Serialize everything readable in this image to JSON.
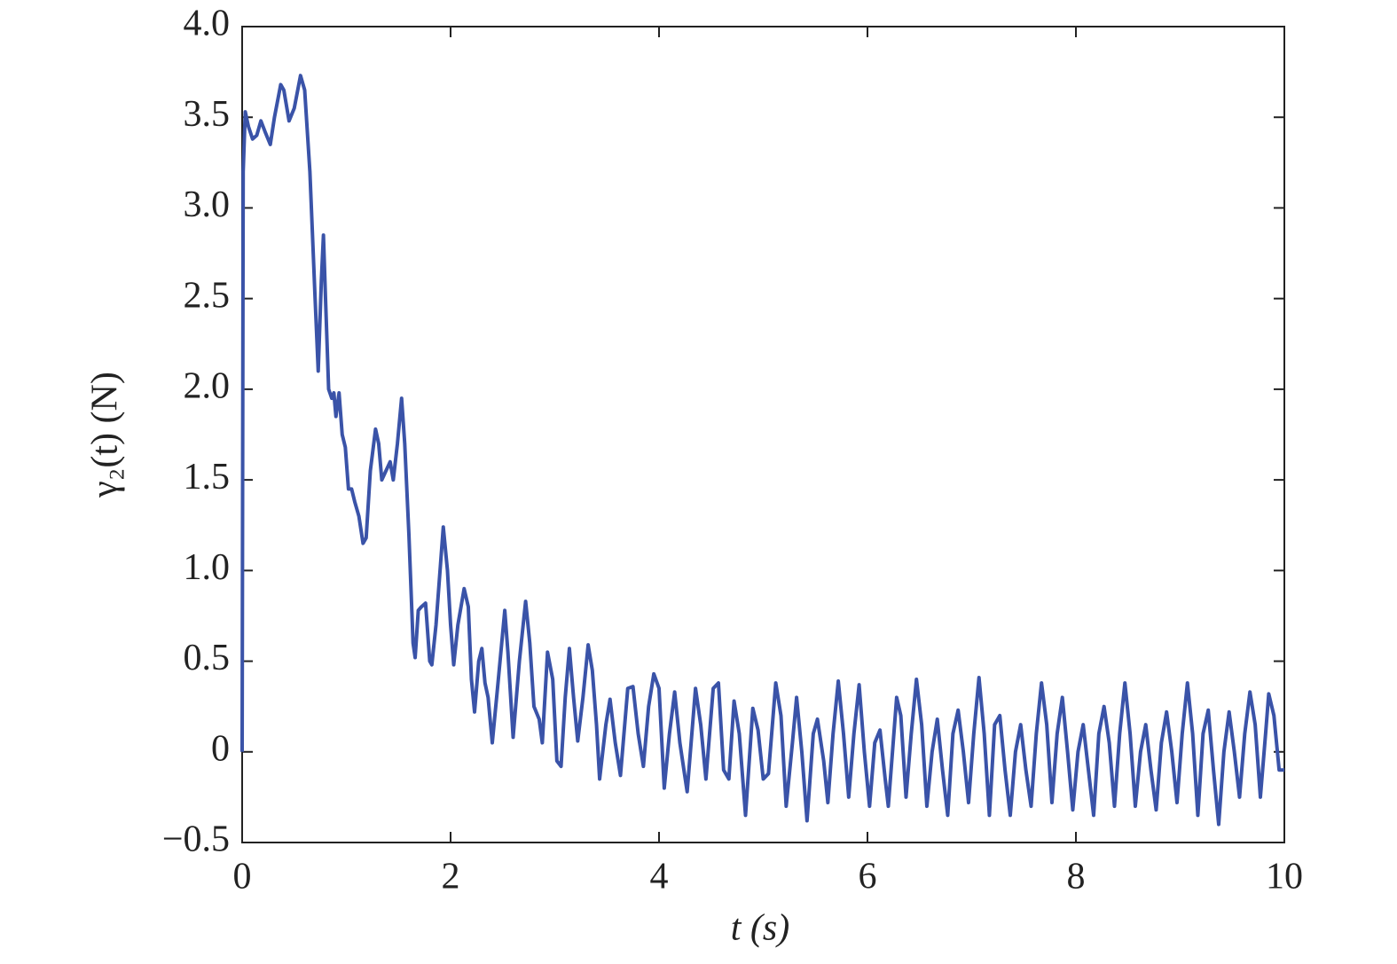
{
  "chart_data": {
    "type": "line",
    "xlabel": "t (s)",
    "ylabel": "γ₂(t) (N)",
    "xlim": [
      0,
      10
    ],
    "xticks": [
      0,
      2,
      4,
      6,
      8,
      10
    ],
    "ylim": [
      -0.5,
      4.0
    ],
    "yticks": [
      {
        "value": -0.5,
        "label": "−0.5"
      },
      0,
      0.5,
      {
        "value": 1.0,
        "label": "1.0"
      },
      1.5,
      {
        "value": 2.0,
        "label": "2.0"
      },
      2.5,
      {
        "value": 3.0,
        "label": "3.0"
      },
      3.5,
      {
        "value": 4.0,
        "label": "4.0"
      }
    ],
    "grid": false,
    "series": [
      {
        "color": "#3a53a8",
        "x": [
          0,
          0.01,
          0.03,
          0.06,
          0.1,
          0.14,
          0.18,
          0.22,
          0.27,
          0.31,
          0.37,
          0.4,
          0.45,
          0.5,
          0.56,
          0.6,
          0.65,
          0.7,
          0.73,
          0.76,
          0.78,
          0.8,
          0.83,
          0.86,
          0.88,
          0.9,
          0.93,
          0.96,
          0.99,
          1.02,
          1.05,
          1.08,
          1.12,
          1.16,
          1.19,
          1.23,
          1.28,
          1.31,
          1.34,
          1.38,
          1.42,
          1.45,
          1.49,
          1.53,
          1.56,
          1.6,
          1.64,
          1.66,
          1.69,
          1.72,
          1.76,
          1.8,
          1.82,
          1.86,
          1.93,
          1.97,
          2.0,
          2.03,
          2.07,
          2.13,
          2.17,
          2.2,
          2.23,
          2.27,
          2.3,
          2.33,
          2.36,
          2.4,
          2.45,
          2.52,
          2.55,
          2.6,
          2.66,
          2.72,
          2.76,
          2.8,
          2.85,
          2.88,
          2.93,
          2.98,
          3.02,
          3.06,
          3.1,
          3.14,
          3.18,
          3.22,
          3.27,
          3.32,
          3.36,
          3.4,
          3.43,
          3.49,
          3.53,
          3.58,
          3.63,
          3.7,
          3.75,
          3.8,
          3.85,
          3.9,
          3.95,
          4.0,
          4.05,
          4.1,
          4.15,
          4.2,
          4.27,
          4.35,
          4.4,
          4.45,
          4.52,
          4.57,
          4.62,
          4.67,
          4.72,
          4.77,
          4.83,
          4.9,
          4.95,
          5.0,
          5.05,
          5.12,
          5.17,
          5.22,
          5.28,
          5.32,
          5.37,
          5.42,
          5.48,
          5.52,
          5.58,
          5.62,
          5.67,
          5.72,
          5.77,
          5.82,
          5.87,
          5.92,
          5.97,
          6.02,
          6.07,
          6.12,
          6.17,
          6.2,
          6.28,
          6.32,
          6.37,
          6.42,
          6.47,
          6.52,
          6.57,
          6.62,
          6.67,
          6.72,
          6.77,
          6.82,
          6.87,
          6.92,
          6.97,
          7.02,
          7.07,
          7.12,
          7.17,
          7.22,
          7.27,
          7.32,
          7.37,
          7.42,
          7.47,
          7.52,
          7.57,
          7.62,
          7.67,
          7.72,
          7.77,
          7.82,
          7.87,
          7.92,
          7.97,
          8.02,
          8.07,
          8.12,
          8.17,
          8.22,
          8.27,
          8.32,
          8.37,
          8.42,
          8.47,
          8.52,
          8.57,
          8.62,
          8.67,
          8.72,
          8.77,
          8.82,
          8.87,
          8.92,
          8.97,
          9.02,
          9.07,
          9.12,
          9.17,
          9.22,
          9.27,
          9.32,
          9.37,
          9.42,
          9.47,
          9.52,
          9.57,
          9.62,
          9.67,
          9.72,
          9.77,
          9.82,
          9.85,
          9.9,
          9.95,
          10
        ],
        "values": [
          0,
          3.2,
          3.53,
          3.45,
          3.38,
          3.4,
          3.48,
          3.42,
          3.35,
          3.5,
          3.68,
          3.65,
          3.48,
          3.55,
          3.73,
          3.65,
          3.2,
          2.5,
          2.1,
          2.6,
          2.85,
          2.5,
          2.0,
          1.95,
          1.98,
          1.85,
          1.98,
          1.75,
          1.68,
          1.45,
          1.45,
          1.38,
          1.3,
          1.15,
          1.18,
          1.55,
          1.78,
          1.7,
          1.5,
          1.55,
          1.6,
          1.5,
          1.7,
          1.95,
          1.7,
          1.2,
          0.6,
          0.52,
          0.78,
          0.8,
          0.82,
          0.5,
          0.48,
          0.7,
          1.24,
          1.0,
          0.7,
          0.48,
          0.7,
          0.9,
          0.8,
          0.4,
          0.22,
          0.5,
          0.57,
          0.38,
          0.3,
          0.05,
          0.35,
          0.78,
          0.55,
          0.08,
          0.5,
          0.83,
          0.6,
          0.25,
          0.18,
          0.05,
          0.55,
          0.4,
          -0.05,
          -0.08,
          0.3,
          0.57,
          0.3,
          0.06,
          0.3,
          0.59,
          0.45,
          0.15,
          -0.15,
          0.15,
          0.29,
          0.05,
          -0.13,
          0.35,
          0.36,
          0.1,
          -0.08,
          0.25,
          0.43,
          0.35,
          -0.2,
          0.1,
          0.33,
          0.05,
          -0.22,
          0.35,
          0.15,
          -0.15,
          0.35,
          0.38,
          -0.1,
          -0.15,
          0.28,
          0.1,
          -0.35,
          0.24,
          0.12,
          -0.15,
          -0.12,
          0.38,
          0.2,
          -0.3,
          0.05,
          0.3,
          0.0,
          -0.38,
          0.1,
          0.18,
          -0.05,
          -0.28,
          0.1,
          0.39,
          0.1,
          -0.25,
          0.1,
          0.37,
          0.0,
          -0.3,
          0.05,
          0.12,
          -0.15,
          -0.3,
          0.3,
          0.2,
          -0.25,
          0.1,
          0.4,
          0.15,
          -0.3,
          0.0,
          0.18,
          -0.1,
          -0.35,
          0.1,
          0.23,
          0.0,
          -0.28,
          0.1,
          0.41,
          0.1,
          -0.35,
          0.15,
          0.2,
          -0.1,
          -0.35,
          0.0,
          0.15,
          -0.1,
          -0.3,
          0.1,
          0.38,
          0.15,
          -0.28,
          0.1,
          0.3,
          0.0,
          -0.32,
          0.0,
          0.15,
          -0.1,
          -0.35,
          0.1,
          0.25,
          0.05,
          -0.3,
          0.1,
          0.38,
          0.1,
          -0.3,
          0.0,
          0.15,
          -0.1,
          -0.32,
          0.05,
          0.22,
          0.0,
          -0.28,
          0.1,
          0.38,
          0.1,
          -0.35,
          0.1,
          0.23,
          -0.1,
          -0.4,
          0.0,
          0.22,
          0.0,
          -0.25,
          0.1,
          0.33,
          0.15,
          -0.25,
          0.1,
          0.32,
          0.2,
          -0.1,
          -0.1
        ]
      }
    ]
  }
}
